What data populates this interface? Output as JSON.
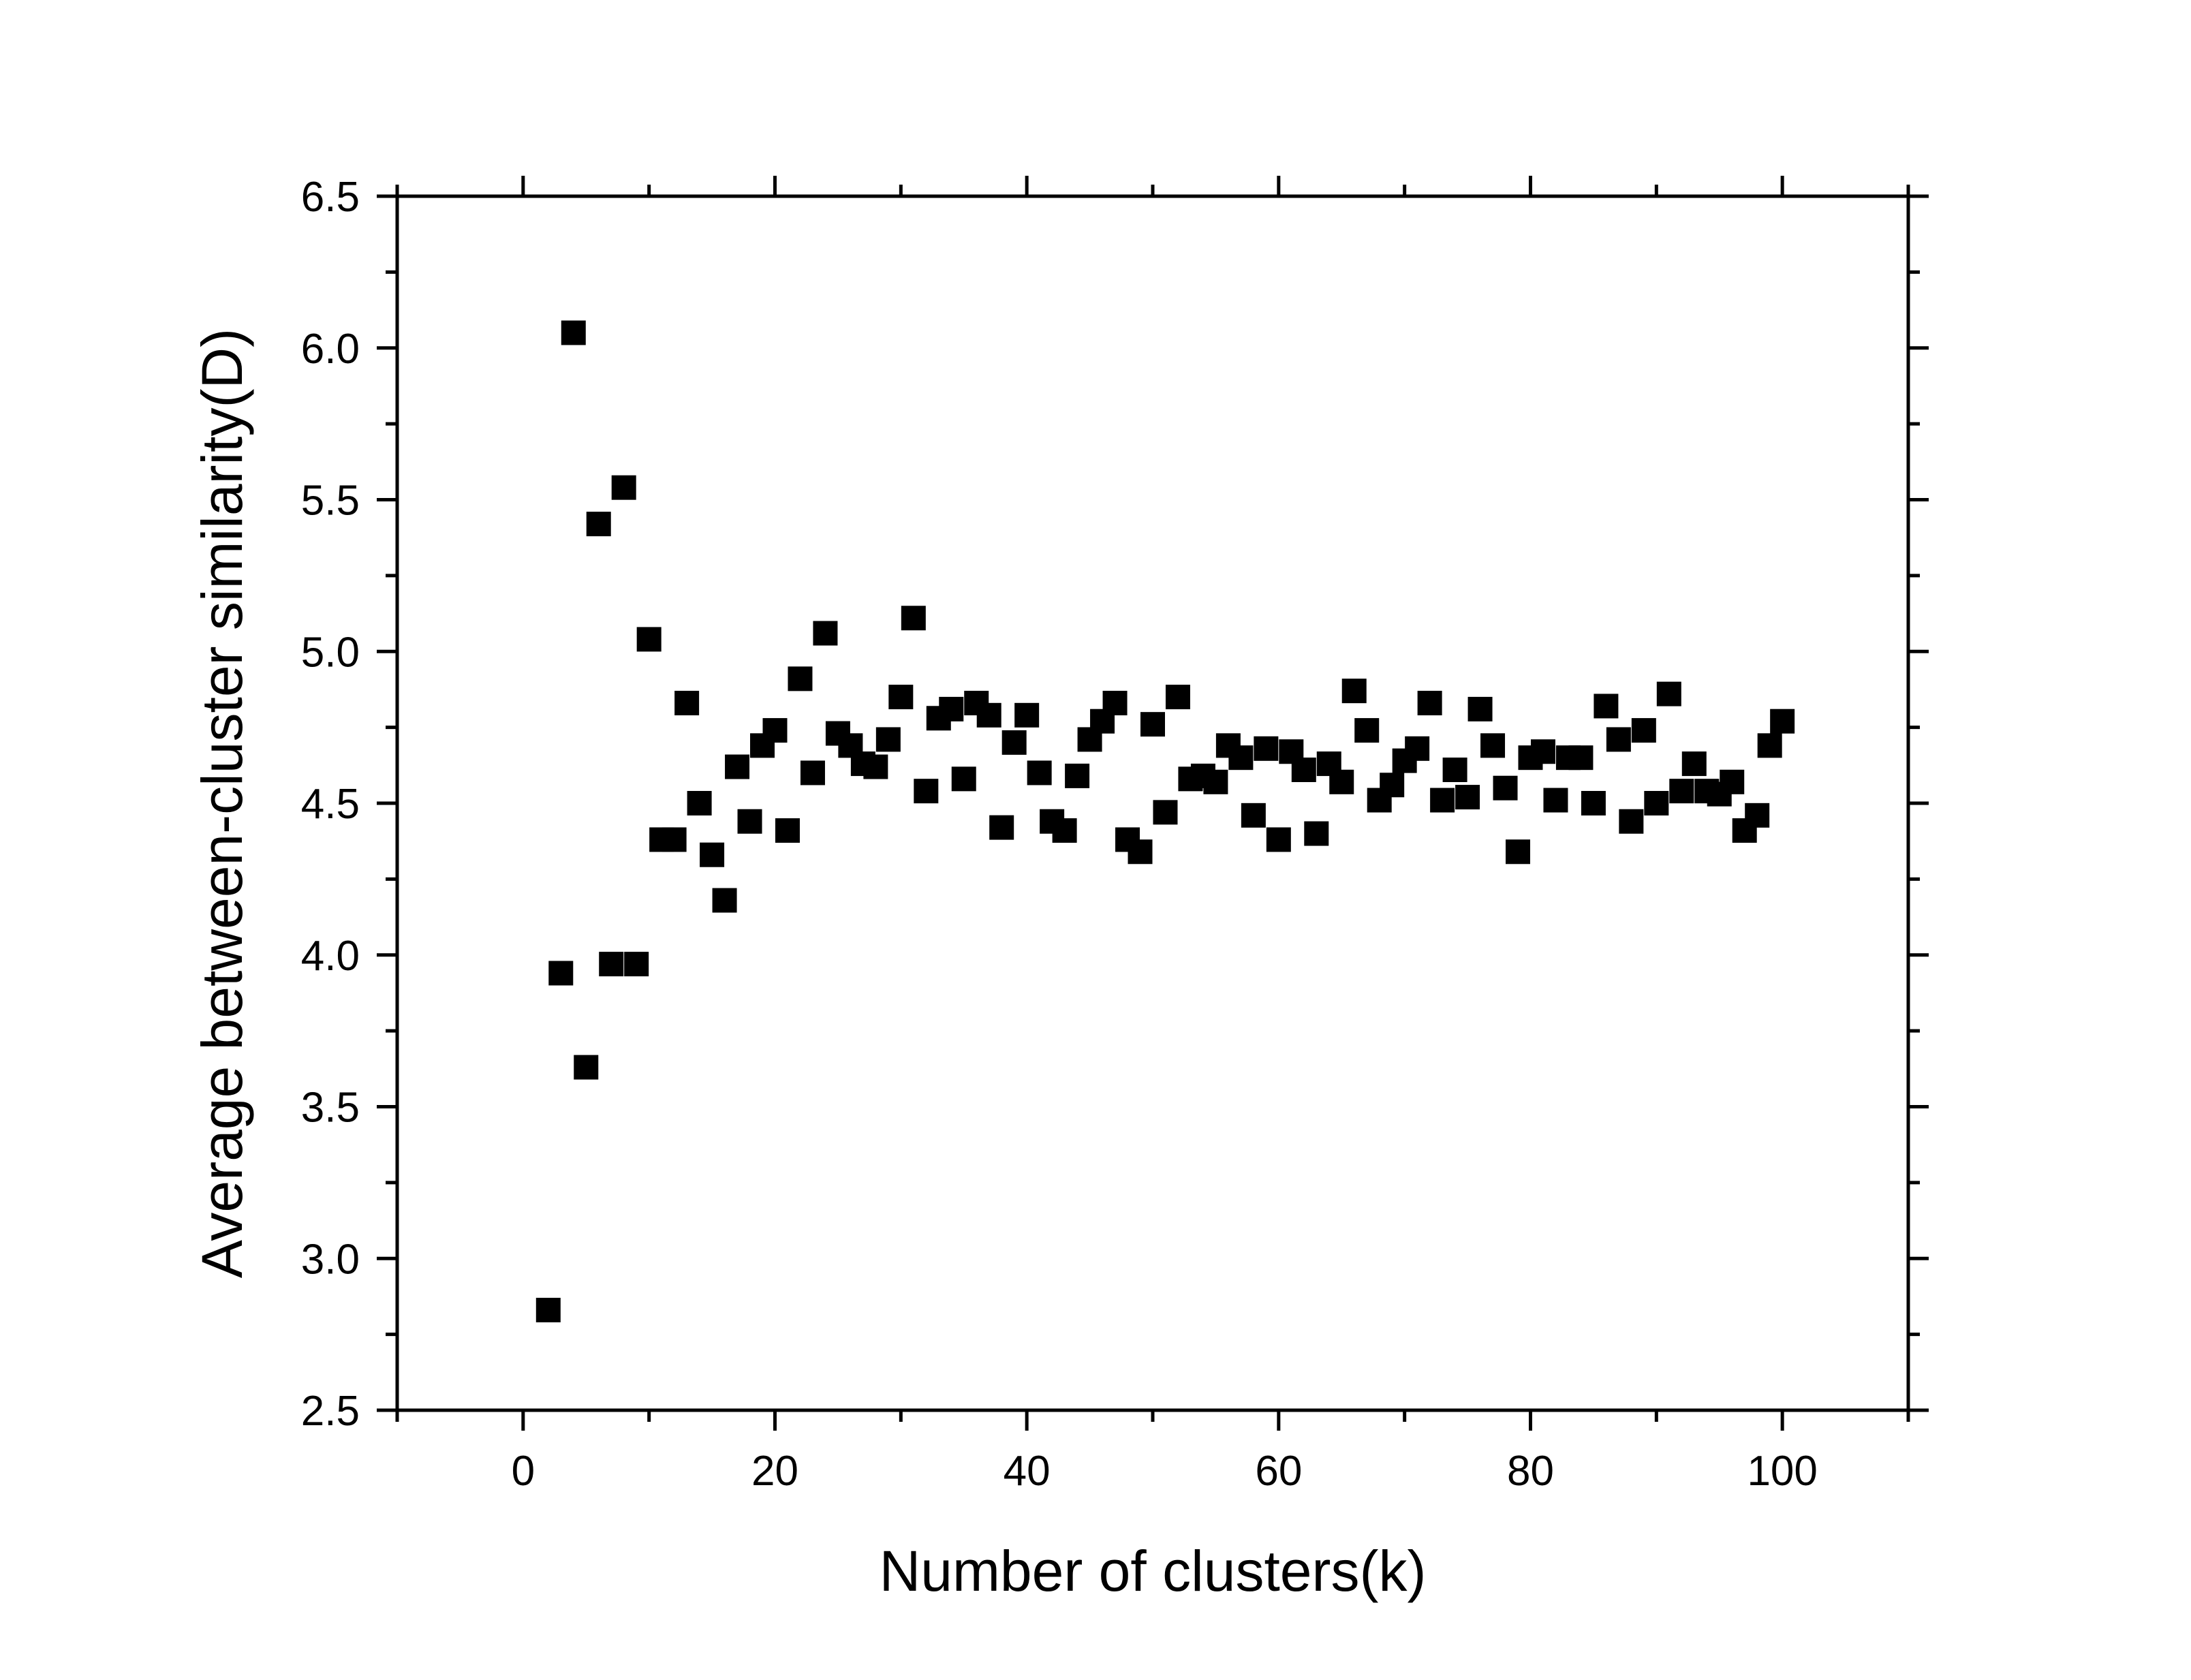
{
  "chart_data": {
    "type": "scatter",
    "title": "",
    "xlabel": "Number of clusters(k)",
    "ylabel": "Average between-cluster similarity(D)",
    "xlim": [
      -10,
      110
    ],
    "ylim": [
      2.5,
      6.5
    ],
    "x_ticks": [
      0,
      20,
      40,
      60,
      80,
      100
    ],
    "x_tick_labels": [
      "0",
      "20",
      "40",
      "60",
      "80",
      "100"
    ],
    "y_ticks": [
      2.5,
      3.0,
      3.5,
      4.0,
      4.5,
      5.0,
      5.5,
      6.0,
      6.5
    ],
    "y_tick_labels": [
      "2.5",
      "3.0",
      "3.5",
      "4.0",
      "4.5",
      "5.0",
      "5.5",
      "6.0",
      "6.5"
    ],
    "grid": false,
    "legend": "none",
    "marker": "square",
    "marker_color": "#000000",
    "series": [
      {
        "x": [
          2,
          3,
          4,
          5,
          6,
          7,
          8,
          9,
          10,
          11,
          12,
          13,
          14,
          15,
          16,
          17,
          18,
          19,
          20,
          21,
          22,
          23,
          24,
          25,
          26,
          27,
          28,
          29,
          30,
          31,
          32,
          33,
          34,
          35,
          36,
          37,
          38,
          39,
          40,
          41,
          42,
          43,
          44,
          45,
          46,
          47,
          48,
          49,
          50,
          51,
          52,
          53,
          54,
          55,
          56,
          57,
          58,
          59,
          60,
          61,
          62,
          63,
          64,
          65,
          66,
          67,
          68,
          69,
          70,
          71,
          72,
          73,
          74,
          75,
          76,
          77,
          78,
          79,
          80,
          81,
          82,
          83,
          84,
          85,
          86,
          87,
          88,
          89,
          90,
          91,
          92,
          93,
          94,
          95,
          96,
          97,
          98,
          99,
          100
        ],
        "y": [
          2.83,
          3.94,
          6.05,
          3.63,
          5.42,
          3.97,
          5.54,
          3.97,
          5.04,
          4.38,
          4.38,
          4.83,
          4.5,
          4.33,
          4.18,
          4.62,
          4.44,
          4.69,
          4.74,
          4.41,
          4.91,
          4.6,
          5.06,
          4.73,
          4.69,
          4.63,
          4.62,
          4.71,
          4.85,
          5.11,
          4.54,
          4.78,
          4.81,
          4.58,
          4.83,
          4.79,
          4.42,
          4.7,
          4.79,
          4.6,
          4.44,
          4.41,
          4.59,
          4.71,
          4.77,
          4.83,
          4.38,
          4.34,
          4.76,
          4.47,
          4.85,
          4.58,
          4.59,
          4.57,
          4.69,
          4.65,
          4.46,
          4.68,
          4.38,
          4.67,
          4.61,
          4.4,
          4.63,
          4.57,
          4.87,
          4.74,
          4.51,
          4.56,
          4.64,
          4.68,
          4.83,
          4.51,
          4.61,
          4.52,
          4.81,
          4.69,
          4.55,
          4.34,
          4.65,
          4.67,
          4.51,
          4.65,
          4.65,
          4.5,
          4.82,
          4.71,
          4.44,
          4.74,
          4.5,
          4.86,
          4.54,
          4.63,
          4.54,
          4.53,
          4.57,
          4.41,
          4.46,
          4.69,
          4.77
        ]
      }
    ]
  }
}
